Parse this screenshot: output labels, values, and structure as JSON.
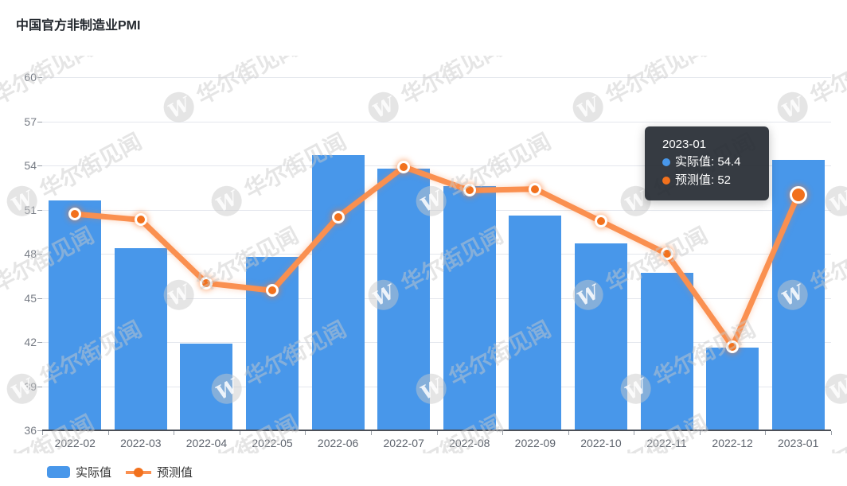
{
  "title": "中国官方非制造业PMI",
  "colors": {
    "bar": "#4897ea",
    "line": "#fa9050",
    "point": "#f2711d",
    "grid": "#e4e7ed",
    "axis": "#4c5058",
    "tooltip_bg": "rgba(39,44,52,0.93)"
  },
  "chart_data": {
    "type": "bar",
    "title": "中国官方非制造业PMI",
    "categories": [
      "2022-02",
      "2022-03",
      "2022-04",
      "2022-05",
      "2022-06",
      "2022-07",
      "2022-08",
      "2022-09",
      "2022-10",
      "2022-11",
      "2022-12",
      "2023-01"
    ],
    "series": [
      {
        "name": "实际值",
        "type": "bar",
        "color": "#4897ea",
        "values": [
          51.6,
          48.4,
          41.9,
          47.8,
          54.7,
          53.8,
          52.6,
          50.6,
          48.7,
          46.7,
          41.6,
          54.4
        ]
      },
      {
        "name": "预测值",
        "type": "line",
        "color": "#fa9050",
        "point_color": "#f2711d",
        "values": [
          50.7,
          50.3,
          46.0,
          45.5,
          50.5,
          53.9,
          52.3,
          52.4,
          50.2,
          48.0,
          41.7,
          52
        ]
      }
    ],
    "xlabel": "",
    "ylabel": "",
    "ylim": [
      36,
      60
    ],
    "yticks": [
      36,
      39,
      42,
      45,
      48,
      51,
      54,
      57,
      60
    ],
    "grid": true,
    "legend_position": "bottom-left",
    "highlighted_point": {
      "series": "预测值",
      "category": "2023-01"
    }
  },
  "tooltip": {
    "title": "2023-01",
    "rows": [
      {
        "text": "实际值: 54.4",
        "color": "#4897ea"
      },
      {
        "text": "预测值: 52",
        "color": "#f2711d"
      }
    ]
  },
  "legend": {
    "items": [
      {
        "label": "实际值",
        "marker": "bar-swatch"
      },
      {
        "label": "预测值",
        "marker": "line-dot"
      }
    ]
  },
  "watermark": {
    "logo": "W",
    "text": "华尔街见闻"
  }
}
